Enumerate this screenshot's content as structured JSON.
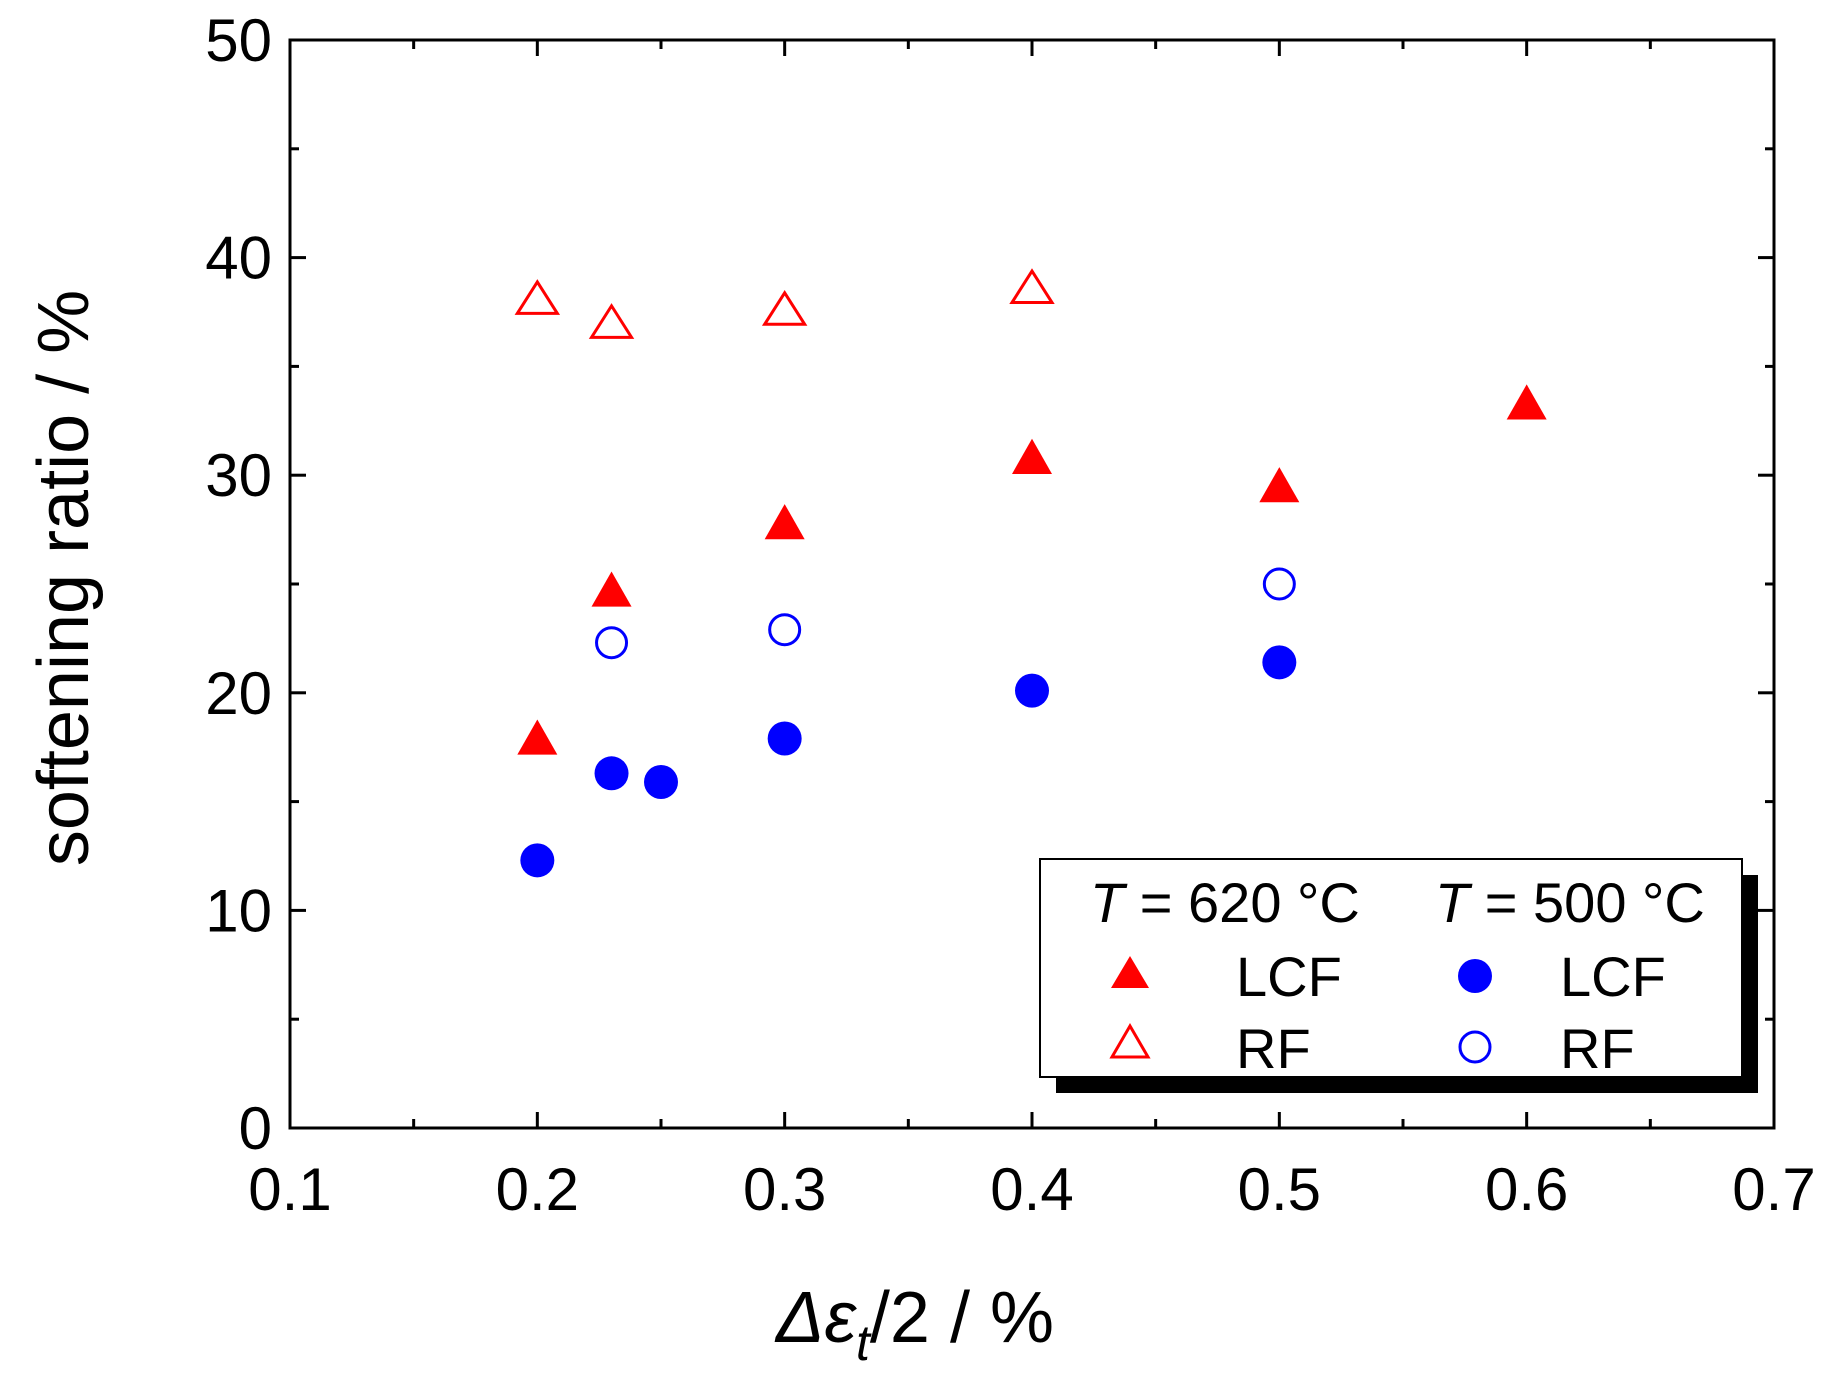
{
  "chart_data": {
    "type": "scatter",
    "title": "",
    "xlabel": {
      "symbol_delta": "Δ",
      "symbol_epsilon": "ε",
      "subscript": "t",
      "rest": "/2 / %"
    },
    "ylabel": "softening ratio / %",
    "xlim": [
      0.1,
      0.7
    ],
    "ylim": [
      0,
      50
    ],
    "x_ticks": [
      0.1,
      0.2,
      0.3,
      0.4,
      0.5,
      0.6,
      0.7
    ],
    "x_tick_labels": [
      "0.1",
      "0.2",
      "0.3",
      "0.4",
      "0.5",
      "0.6",
      "0.7"
    ],
    "y_ticks": [
      0,
      10,
      20,
      30,
      40,
      50
    ],
    "y_tick_labels": [
      "0",
      "10",
      "20",
      "30",
      "40",
      "50"
    ],
    "grid": false,
    "legend": {
      "placement": "bottom-right",
      "headers": [
        {
          "var": "T",
          "rest": " = 620 °C"
        },
        {
          "var": "T",
          "rest": " = 500 °C"
        }
      ],
      "labels": [
        "LCF",
        "RF",
        "LCF",
        "RF"
      ]
    },
    "series": [
      {
        "name": "620 °C LCF",
        "marker": "triangle",
        "filled": true,
        "color": "#ff0000",
        "x": [
          0.2,
          0.23,
          0.3,
          0.4,
          0.5,
          0.6
        ],
        "y": [
          17.9,
          24.7,
          27.8,
          30.8,
          29.5,
          33.3
        ]
      },
      {
        "name": "620 °C RF",
        "marker": "triangle",
        "filled": false,
        "color": "#ff0000",
        "x": [
          0.2,
          0.23,
          0.3,
          0.4
        ],
        "y": [
          38.1,
          37.0,
          37.6,
          38.6
        ]
      },
      {
        "name": "500 °C LCF",
        "marker": "circle",
        "filled": true,
        "color": "#0000ff",
        "x": [
          0.2,
          0.23,
          0.25,
          0.3,
          0.4,
          0.5
        ],
        "y": [
          12.3,
          16.3,
          15.9,
          17.9,
          20.1,
          21.4
        ]
      },
      {
        "name": "500 °C RF",
        "marker": "circle",
        "filled": false,
        "color": "#0000ff",
        "x": [
          0.23,
          0.3,
          0.5
        ],
        "y": [
          22.3,
          22.9,
          25.0
        ]
      }
    ]
  }
}
